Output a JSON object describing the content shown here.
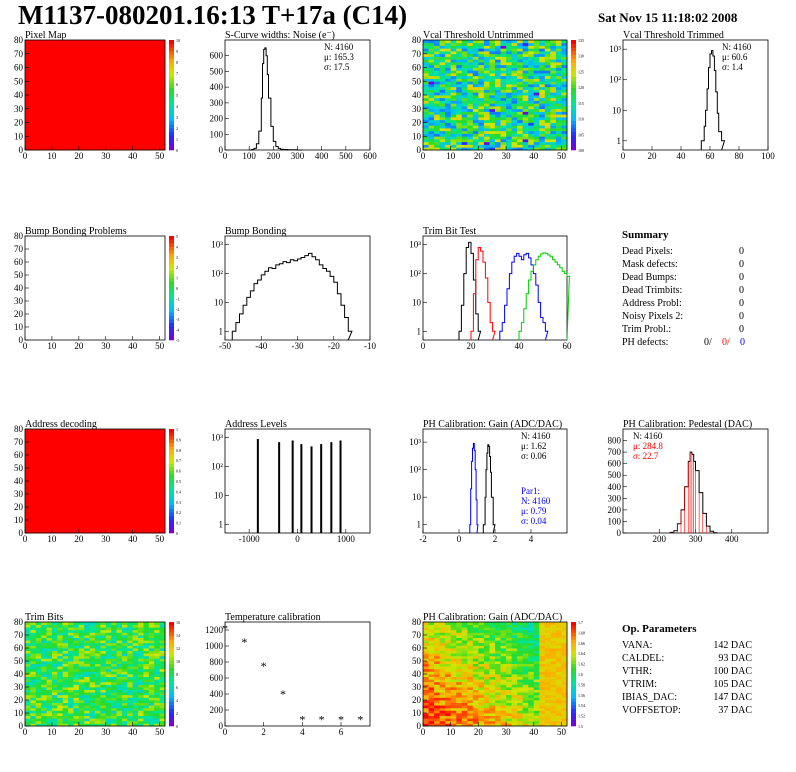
{
  "header": {
    "title": "M1137-080201.16:13 T+17a (C14)",
    "date": "Sat Nov 15 11:18:02 2008"
  },
  "summary": {
    "title": "Summary",
    "rows": [
      {
        "label": "Dead Pixels:",
        "value": "0"
      },
      {
        "label": "Mask defects:",
        "value": "0"
      },
      {
        "label": "Dead Bumps:",
        "value": "0"
      },
      {
        "label": "Dead Trimbits:",
        "value": "0"
      },
      {
        "label": "Address Probl:",
        "value": "0"
      },
      {
        "label": "Noisy Pixels 2:",
        "value": "0"
      },
      {
        "label": "Trim Probl.:",
        "value": "0"
      }
    ],
    "ph_defects": {
      "label": "PH defects:",
      "v1": "0/",
      "v2": "0/",
      "v3": "0"
    }
  },
  "op_params": {
    "title": "Op. Parameters",
    "rows": [
      {
        "label": "VANA:",
        "value": "142 DAC"
      },
      {
        "label": "CALDEL:",
        "value": "93 DAC"
      },
      {
        "label": "VTHR:",
        "value": "100 DAC"
      },
      {
        "label": "VTRIM:",
        "value": "105 DAC"
      },
      {
        "label": "IBIAS_DAC:",
        "value": "147 DAC"
      },
      {
        "label": "VOFFSETOP:",
        "value": "37 DAC"
      }
    ]
  },
  "colors": {
    "red": "#ff0000",
    "blue": "#0000ff",
    "green": "#00cc00",
    "black": "#000000"
  },
  "chart_data": [
    {
      "id": "pixel-map",
      "type": "heatmap",
      "title": "Pixel Map",
      "xlim": [
        0,
        52
      ],
      "ylim": [
        0,
        80
      ],
      "xticks": [
        "0",
        "10",
        "20",
        "30",
        "40",
        "50"
      ],
      "yticks": [
        "0",
        "10",
        "20",
        "30",
        "40",
        "50",
        "60",
        "70",
        "80"
      ],
      "zlim": [
        0,
        10
      ],
      "zticks": [
        "0",
        "1",
        "2",
        "3",
        "4",
        "5",
        "6",
        "7",
        "8",
        "9",
        "10"
      ],
      "value": 10,
      "pattern": "uniform"
    },
    {
      "id": "noise",
      "type": "line",
      "title": "S-Curve widths: Noise (e⁻)",
      "xlim": [
        0,
        600
      ],
      "ylim": [
        0,
        700
      ],
      "xticks": [
        "0",
        "100",
        "200",
        "300",
        "400",
        "500",
        "600"
      ],
      "yticks": [
        "0",
        "100",
        "200",
        "300",
        "400",
        "500",
        "600"
      ],
      "stats": [
        "N: 4160",
        "μ: 165.3",
        "σ: 17.5"
      ],
      "series": [
        {
          "x": [
            100,
            110,
            120,
            130,
            140,
            150,
            155,
            160,
            165,
            170,
            175,
            180,
            190,
            200,
            210,
            220,
            230,
            240,
            260,
            280,
            300
          ],
          "y": [
            0,
            3,
            10,
            40,
            120,
            330,
            550,
            640,
            650,
            600,
            480,
            330,
            150,
            55,
            22,
            10,
            5,
            3,
            2,
            1,
            0
          ]
        }
      ]
    },
    {
      "id": "vcal-untrimmed",
      "type": "heatmap",
      "title": "Vcal Threshold Untrimmed",
      "xlim": [
        0,
        52
      ],
      "ylim": [
        0,
        80
      ],
      "xticks": [
        "0",
        "10",
        "20",
        "30",
        "40",
        "50"
      ],
      "yticks": [
        "0",
        "10",
        "20",
        "30",
        "40",
        "50",
        "60",
        "70",
        "80"
      ],
      "zticks": [
        "100",
        "105",
        "110",
        "115",
        "120",
        "125",
        "130",
        "135"
      ],
      "pattern": "noise-mid"
    },
    {
      "id": "vcal-trimmed",
      "type": "line",
      "log": true,
      "title": "Vcal Threshold Trimmed",
      "xlim": [
        0,
        100
      ],
      "ylim": [
        0.5,
        2000
      ],
      "xticks": [
        "0",
        "20",
        "40",
        "60",
        "80",
        "100"
      ],
      "yticks": [
        "1",
        "10",
        "10²",
        "10³"
      ],
      "stats": [
        "N: 4160",
        "μ: 60.6",
        "σ: 1.4"
      ],
      "series": [
        {
          "x": [
            54,
            56,
            57,
            58,
            59,
            60,
            61,
            62,
            63,
            64,
            65,
            66,
            68
          ],
          "y": [
            1,
            3,
            10,
            50,
            250,
            700,
            900,
            600,
            200,
            40,
            8,
            2,
            1
          ]
        }
      ]
    },
    {
      "id": "bump-bonding-problems",
      "type": "heatmap",
      "title": "Bump Bonding Problems",
      "xlim": [
        0,
        52
      ],
      "ylim": [
        0,
        80
      ],
      "xticks": [
        "0",
        "10",
        "20",
        "30",
        "40",
        "50"
      ],
      "yticks": [
        "0",
        "10",
        "20",
        "30",
        "40",
        "50",
        "60",
        "70",
        "80"
      ],
      "zticks": [
        "-5",
        "-4",
        "-3",
        "-2",
        "-1",
        "0",
        "1",
        "2",
        "3",
        "4",
        "5"
      ],
      "pattern": "empty"
    },
    {
      "id": "bump-bonding",
      "type": "line",
      "log": true,
      "title": "Bump Bonding",
      "xlim": [
        -50,
        -10
      ],
      "ylim": [
        0.5,
        2000
      ],
      "xticks": [
        "-50",
        "-40",
        "-30",
        "-20",
        "-10"
      ],
      "yticks": [
        "1",
        "10",
        "10²",
        "10³"
      ],
      "series": [
        {
          "x": [
            -48,
            -47,
            -46,
            -45,
            -44,
            -43,
            -42,
            -41,
            -40,
            -39,
            -38,
            -37,
            -36,
            -35,
            -34,
            -33,
            -32,
            -31,
            -30,
            -29,
            -28,
            -27,
            -26,
            -25,
            -24,
            -23,
            -22,
            -21,
            -20,
            -19,
            -18,
            -17,
            -16
          ],
          "y": [
            1,
            2,
            4,
            8,
            15,
            25,
            45,
            60,
            90,
            120,
            160,
            150,
            200,
            220,
            260,
            240,
            300,
            280,
            320,
            360,
            420,
            500,
            380,
            300,
            200,
            150,
            120,
            80,
            50,
            20,
            8,
            3,
            1
          ]
        }
      ]
    },
    {
      "id": "trim-bit-test",
      "type": "line",
      "log": true,
      "title": "Trim Bit Test",
      "xlim": [
        0,
        60
      ],
      "ylim": [
        0.5,
        2000
      ],
      "xticks": [
        "0",
        "20",
        "40",
        "60"
      ],
      "yticks": [
        "1",
        "10",
        "10²",
        "10³"
      ],
      "series": [
        {
          "color": "black",
          "x": [
            15,
            16,
            17,
            18,
            19,
            20,
            21,
            22,
            23
          ],
          "y": [
            1,
            8,
            100,
            800,
            1200,
            500,
            60,
            4,
            1
          ]
        },
        {
          "color": "red",
          "x": [
            20,
            21,
            22,
            23,
            24,
            25,
            26,
            27,
            28,
            29
          ],
          "y": [
            1,
            20,
            300,
            800,
            600,
            250,
            70,
            10,
            2,
            1
          ]
        },
        {
          "color": "blue",
          "x": [
            32,
            33,
            34,
            35,
            36,
            37,
            38,
            39,
            40,
            41,
            42,
            43,
            44,
            45,
            46,
            47,
            48,
            49,
            50,
            51
          ],
          "y": [
            1,
            2,
            8,
            30,
            100,
            250,
            400,
            500,
            400,
            300,
            450,
            500,
            350,
            200,
            100,
            40,
            10,
            3,
            2,
            1
          ]
        },
        {
          "color": "green",
          "x": [
            40,
            41,
            42,
            43,
            44,
            45,
            46,
            47,
            48,
            49,
            50,
            51,
            52,
            53,
            54,
            55,
            56,
            57,
            58,
            59,
            60
          ],
          "y": [
            1,
            2,
            6,
            20,
            60,
            120,
            200,
            300,
            400,
            480,
            520,
            500,
            440,
            380,
            300,
            250,
            200,
            160,
            120,
            100,
            80
          ]
        }
      ]
    },
    {
      "id": "address-decoding",
      "type": "heatmap",
      "title": "Address decoding",
      "xlim": [
        0,
        52
      ],
      "ylim": [
        0,
        80
      ],
      "xticks": [
        "0",
        "10",
        "20",
        "30",
        "40",
        "50"
      ],
      "yticks": [
        "0",
        "10",
        "20",
        "30",
        "40",
        "50",
        "60",
        "70",
        "80"
      ],
      "zlim": [
        0,
        1
      ],
      "zticks": [
        "0",
        "0.1",
        "0.2",
        "0.3",
        "0.4",
        "0.5",
        "0.6",
        "0.7",
        "0.8",
        "0.9",
        "1"
      ],
      "value": 1,
      "pattern": "uniform"
    },
    {
      "id": "address-levels",
      "type": "bar",
      "log": true,
      "title": "Address Levels",
      "xlim": [
        -1500,
        1500
      ],
      "ylim": [
        0.5,
        2000
      ],
      "xticks": [
        "-1000",
        "0",
        "1000"
      ],
      "yticks": [
        "1",
        "10",
        "10²",
        "10³"
      ],
      "peaks": [
        {
          "x": -820,
          "y": 900
        },
        {
          "x": -380,
          "y": 700
        },
        {
          "x": -100,
          "y": 800
        },
        {
          "x": 80,
          "y": 600
        },
        {
          "x": 290,
          "y": 500
        },
        {
          "x": 490,
          "y": 600
        },
        {
          "x": 700,
          "y": 700
        },
        {
          "x": 890,
          "y": 800
        }
      ]
    },
    {
      "id": "ph-gain",
      "type": "line",
      "log": true,
      "title": "PH Calibration: Gain (ADC/DAC)",
      "xlim": [
        -2,
        6
      ],
      "ylim": [
        0.5,
        3000
      ],
      "xticks": [
        "-2",
        "0",
        "2",
        "4"
      ],
      "yticks": [
        "1",
        "10",
        "10²",
        "10³"
      ],
      "stats": [
        "N: 4160",
        "μ: 1.62",
        "σ: 0.06"
      ],
      "stats2": [
        "Par1:",
        "N: 4160",
        "μ: 0.79",
        "σ: 0.04"
      ],
      "series": [
        {
          "color": "black",
          "x": [
            1.35,
            1.45,
            1.5,
            1.55,
            1.6,
            1.65,
            1.7,
            1.75,
            1.8,
            1.9
          ],
          "y": [
            1,
            10,
            100,
            400,
            800,
            700,
            300,
            80,
            10,
            1
          ]
        },
        {
          "color": "blue",
          "x": [
            0.6,
            0.65,
            0.7,
            0.75,
            0.8,
            0.85,
            0.9,
            0.95,
            1.0
          ],
          "y": [
            1,
            20,
            200,
            600,
            900,
            500,
            100,
            8,
            1
          ]
        }
      ]
    },
    {
      "id": "ph-pedestal",
      "type": "line",
      "title": "PH Calibration: Pedestal (DAC)",
      "xlim": [
        100,
        500
      ],
      "ylim": [
        0,
        900
      ],
      "xticks": [
        "200",
        "300",
        "400"
      ],
      "yticks": [
        "0",
        "100",
        "200",
        "300",
        "400",
        "500",
        "600",
        "700",
        "800"
      ],
      "stats": [
        "N: 4160",
        "μ: 284.8",
        "σ: 22.7"
      ],
      "series": [
        {
          "x": [
            230,
            240,
            250,
            260,
            270,
            280,
            285,
            290,
            295,
            300,
            310,
            320,
            330,
            340,
            350
          ],
          "y": [
            5,
            20,
            80,
            200,
            400,
            620,
            700,
            680,
            620,
            540,
            350,
            170,
            60,
            15,
            3
          ]
        }
      ]
    },
    {
      "id": "trim-bits",
      "type": "heatmap",
      "title": "Trim Bits",
      "xlim": [
        0,
        52
      ],
      "ylim": [
        0,
        80
      ],
      "xticks": [
        "0",
        "10",
        "20",
        "30",
        "40",
        "50"
      ],
      "yticks": [
        "0",
        "10",
        "20",
        "30",
        "40",
        "50",
        "60",
        "70",
        "80"
      ],
      "zticks": [
        "0",
        "2",
        "4",
        "6",
        "8",
        "10",
        "12",
        "14",
        "16"
      ],
      "pattern": "noise-green"
    },
    {
      "id": "temperature-calibration",
      "type": "scatter",
      "title": "Temperature calibration",
      "xlim": [
        0,
        7.5
      ],
      "ylim": [
        0,
        1300
      ],
      "xticks": [
        "0",
        "2",
        "4",
        "6"
      ],
      "yticks": [
        "0",
        "200",
        "400",
        "600",
        "800",
        "1000",
        "1200"
      ],
      "series": [
        {
          "x": [
            0,
            1,
            2,
            3,
            4,
            5,
            6,
            7
          ],
          "y": [
            1220,
            1050,
            750,
            400,
            80,
            80,
            80,
            80
          ]
        }
      ]
    },
    {
      "id": "ph-gain-map",
      "type": "heatmap",
      "title": "PH Calibration: Gain (ADC/DAC)",
      "xlim": [
        0,
        52
      ],
      "ylim": [
        0,
        80
      ],
      "xticks": [
        "0",
        "10",
        "20",
        "30",
        "40",
        "50"
      ],
      "yticks": [
        "0",
        "10",
        "20",
        "30",
        "40",
        "50",
        "60",
        "70",
        "80"
      ],
      "zticks": [
        "1.5",
        "1.52",
        "1.54",
        "1.56",
        "1.58",
        "1.6",
        "1.62",
        "1.64",
        "1.66",
        "1.68",
        "1.7"
      ],
      "pattern": "gain"
    }
  ]
}
